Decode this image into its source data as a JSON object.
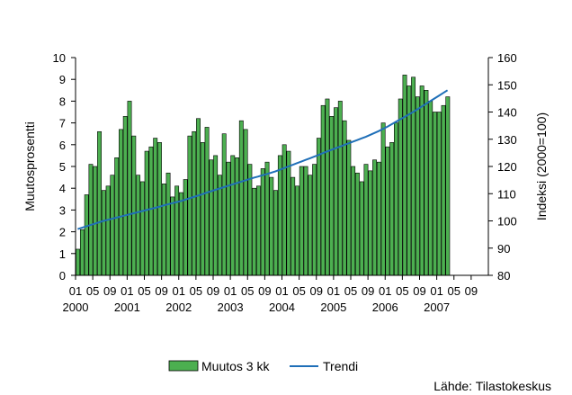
{
  "chart_data": {
    "type": "bar",
    "ylabel_left": "Muutosprosentti",
    "ylabel_right": "Indeksi (2000=100)",
    "ylim_left": [
      0,
      10
    ],
    "yticks_left": [
      "0",
      "1",
      "2",
      "3",
      "4",
      "5",
      "6",
      "7",
      "8",
      "9",
      "10"
    ],
    "ylim_right": [
      80,
      160
    ],
    "yticks_right": [
      "80",
      "90",
      "100",
      "110",
      "120",
      "130",
      "140",
      "150",
      "160"
    ],
    "x_month_ticks": [
      "01",
      "05",
      "09",
      "01",
      "05",
      "09",
      "01",
      "05",
      "09",
      "01",
      "05",
      "09",
      "01",
      "05",
      "09",
      "01",
      "05",
      "09",
      "01",
      "05",
      "09",
      "01",
      "05",
      "09"
    ],
    "x_year_ticks": [
      "2000",
      "2001",
      "2002",
      "2003",
      "2004",
      "2005",
      "2006",
      "2007"
    ],
    "grid": false,
    "legend": {
      "position": "bottom",
      "bar_label": "Muutos 3 kk",
      "line_label": "Trendi"
    },
    "source": "Lähde: Tilastokeskus",
    "series": [
      {
        "name": "Muutos 3 kk",
        "type": "bar",
        "axis": "left",
        "color": "#4caf50",
        "values": [
          1.2,
          2.1,
          3.7,
          5.1,
          5.0,
          6.6,
          3.9,
          4.1,
          4.6,
          5.4,
          6.7,
          7.3,
          8.0,
          6.4,
          4.6,
          4.3,
          5.7,
          5.9,
          6.3,
          6.1,
          4.2,
          4.7,
          3.6,
          4.1,
          3.8,
          4.4,
          6.4,
          6.6,
          7.2,
          6.1,
          6.8,
          5.3,
          5.5,
          4.6,
          6.5,
          5.2,
          5.5,
          5.4,
          7.1,
          6.7,
          5.1,
          4.0,
          4.1,
          4.9,
          5.2,
          4.5,
          3.9,
          5.5,
          6.0,
          5.7,
          4.5,
          4.1,
          5.0,
          5.0,
          4.6,
          5.1,
          6.3,
          7.8,
          8.1,
          7.3,
          7.7,
          8.0,
          7.1,
          6.2,
          5.0,
          4.7,
          4.3,
          5.1,
          4.8,
          5.3,
          5.2,
          7.0,
          5.9,
          6.1,
          7.0,
          8.1,
          9.2,
          8.7,
          9.1,
          8.2,
          8.7,
          8.5,
          8.0,
          7.5,
          7.5,
          7.8,
          8.2
        ],
        "ylim": [
          0,
          10
        ]
      },
      {
        "name": "Trendi",
        "type": "line",
        "axis": "right",
        "color": "#1f6fb8",
        "values": [
          97,
          97.5,
          98,
          98.5,
          99,
          99.5,
          100,
          100.4,
          100.8,
          101.2,
          101.6,
          102,
          102.4,
          102.8,
          103.2,
          103.6,
          104,
          104.4,
          104.8,
          105.2,
          105.7,
          106.1,
          106.5,
          106.9,
          107.3,
          107.8,
          108.3,
          108.8,
          109.3,
          109.8,
          110.4,
          110.9,
          111.4,
          111.9,
          112.4,
          112.9,
          113.4,
          113.9,
          114.4,
          114.9,
          115.4,
          115.9,
          116.3,
          116.8,
          117.2,
          117.7,
          118.2,
          118.8,
          119.4,
          120,
          120.6,
          121.2,
          121.8,
          122.4,
          123,
          123.6,
          124.2,
          124.9,
          125.5,
          126.1,
          126.7,
          127.3,
          127.9,
          128.5,
          129.1,
          129.7,
          130.3,
          130.9,
          131.6,
          132.3,
          133,
          133.8,
          134.6,
          135.5,
          136.4,
          137.3,
          138.2,
          139.1,
          140,
          141,
          142,
          143,
          144,
          145,
          146,
          147,
          148
        ],
        "ylim": [
          80,
          160
        ]
      }
    ]
  }
}
